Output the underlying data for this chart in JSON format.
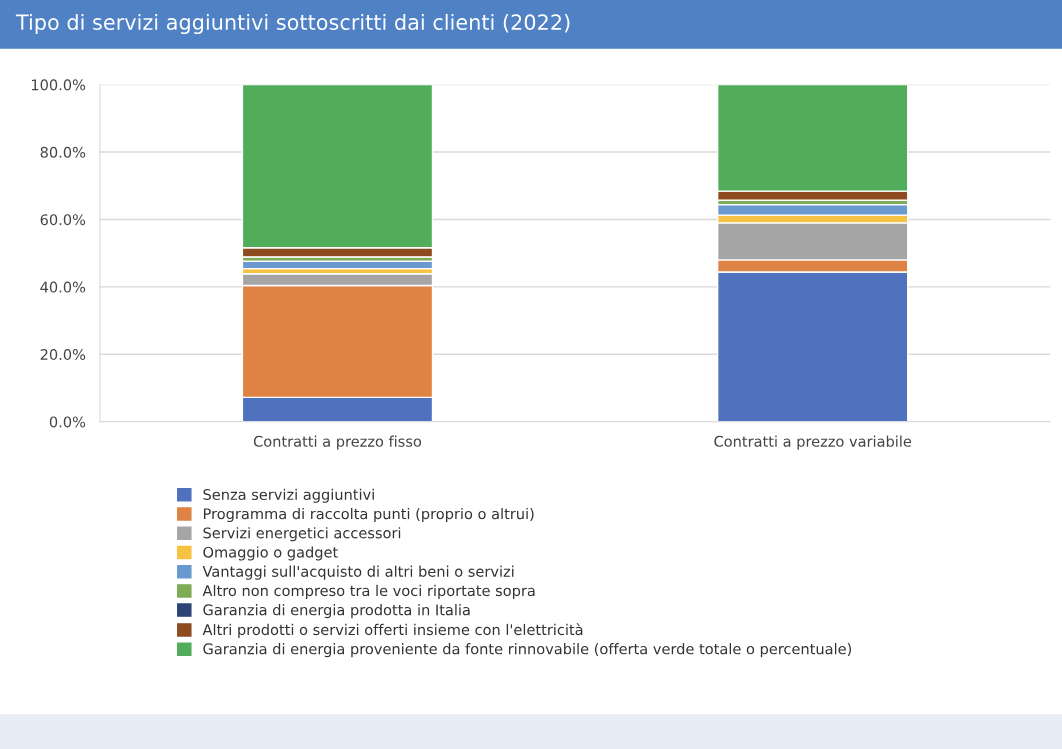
{
  "chart_data": {
    "type": "bar",
    "title": "Tipo di servizi aggiuntivi sottoscritti dai clienti (2022)",
    "categories": [
      "Contratti a prezzo fisso",
      "Contratti a prezzo variabile"
    ],
    "stacked": true,
    "series": [
      {
        "name": "Senza servizi aggiuntivi",
        "color": "#4f71be",
        "values": [
          7.2,
          44.4
        ]
      },
      {
        "name": "Programma di raccolta punti (proprio o altrui)",
        "color": "#de8344",
        "values": [
          33.2,
          3.6
        ]
      },
      {
        "name": "Servizi energetici accessori",
        "color": "#a5a5a5",
        "values": [
          3.5,
          11.0
        ]
      },
      {
        "name": "Omaggio o gadget",
        "color": "#f6c242",
        "values": [
          1.5,
          2.3
        ]
      },
      {
        "name": "Vantaggi sull'acquisto di altri beni o servizi",
        "color": "#6a99d0",
        "values": [
          2.2,
          3.1
        ]
      },
      {
        "name": "Altro non compreso tra le voci riportate sopra",
        "color": "#7eab55",
        "values": [
          1.3,
          1.3
        ]
      },
      {
        "name": "Garanzia di energia prodotta in Italia",
        "color": "#2d4374",
        "values": [
          0.0,
          0.0
        ]
      },
      {
        "name": "Altri prodotti o servizi offerti insieme con l'elettricità",
        "color": "#8e4b1f",
        "values": [
          2.7,
          2.7
        ]
      },
      {
        "name": "Garanzia di energia proveniente da fonte rinnovabile (offerta verde totale o percentuale)",
        "color": "#52ad5b",
        "values": [
          48.4,
          31.6
        ]
      }
    ],
    "ylim": [
      0,
      100
    ],
    "yticks": [
      {
        "value": 0,
        "label": "0.0%"
      },
      {
        "value": 20,
        "label": "20.0%"
      },
      {
        "value": 40,
        "label": "40.0%"
      },
      {
        "value": 60,
        "label": "60.0%"
      },
      {
        "value": 80,
        "label": "80.0%"
      },
      {
        "value": 100,
        "label": "100.0%"
      }
    ],
    "grid": "y",
    "legend": "bottom"
  }
}
